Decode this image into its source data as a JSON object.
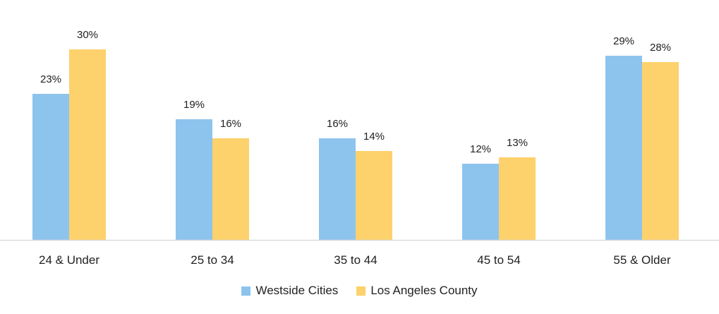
{
  "chart_data": {
    "type": "bar",
    "title": "",
    "xlabel": "",
    "ylabel": "",
    "categories": [
      "24 & Under",
      "25 to 34",
      "35 to 44",
      "45 to 54",
      "55 & Older"
    ],
    "series": [
      {
        "name": "Westside Cities",
        "values": [
          23,
          19,
          16,
          12,
          29
        ],
        "labels": [
          "23%",
          "19%",
          "16%",
          "12%",
          "29%"
        ],
        "color": "#8DC4EE"
      },
      {
        "name": "Los Angeles County",
        "values": [
          30,
          16,
          14,
          13,
          28
        ],
        "labels": [
          "30%",
          "16%",
          "14%",
          "13%",
          "28%"
        ],
        "color": "#FDD16B"
      }
    ],
    "ylim": [
      0,
      34
    ],
    "grid": false,
    "legend_position": "bottom-center"
  },
  "colors": {
    "axis": "#D9D9D9",
    "text": "#222222"
  }
}
